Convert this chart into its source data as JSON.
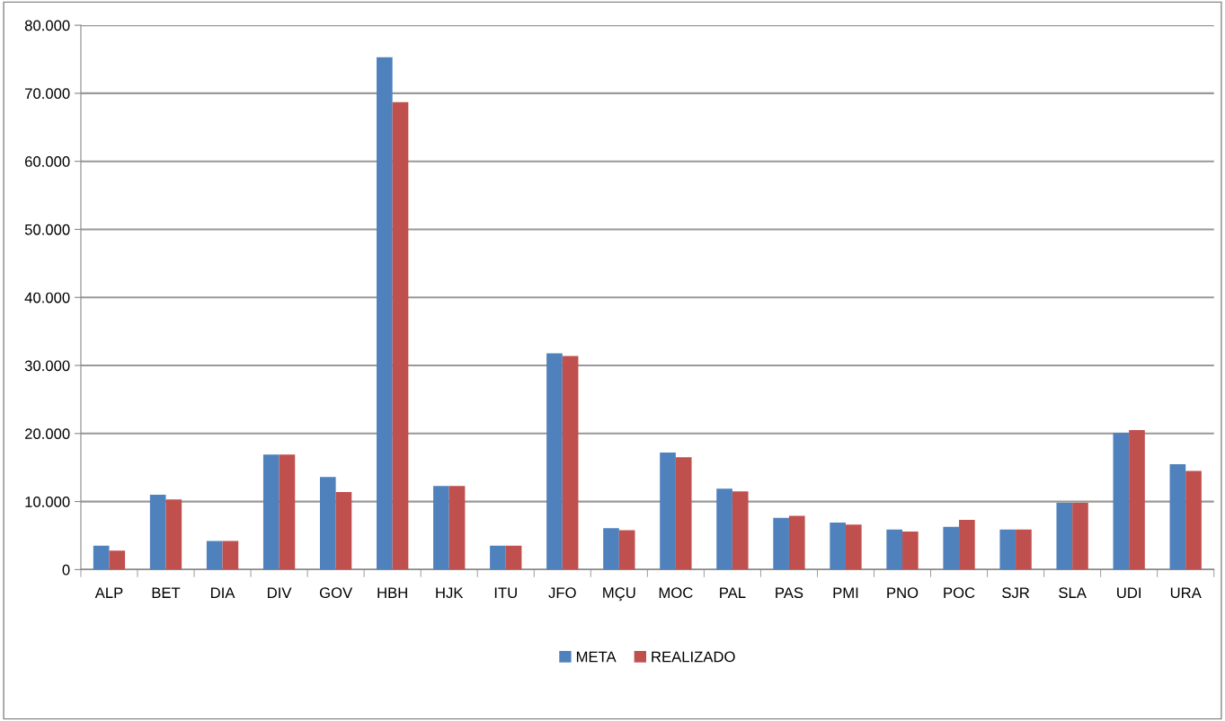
{
  "chart_data": {
    "type": "bar",
    "categories": [
      "ALP",
      "BET",
      "DIA",
      "DIV",
      "GOV",
      "HBH",
      "HJK",
      "ITU",
      "JFO",
      "MÇU",
      "MOC",
      "PAL",
      "PAS",
      "PMI",
      "PNO",
      "POC",
      "SJR",
      "SLA",
      "UDI",
      "URA"
    ],
    "series": [
      {
        "name": "META",
        "color": "#4f81bd",
        "values": [
          3500,
          11000,
          4200,
          16900,
          13600,
          75300,
          12300,
          3500,
          31800,
          6100,
          17200,
          11900,
          7600,
          6900,
          5900,
          6300,
          5900,
          9800,
          20100,
          15500
        ]
      },
      {
        "name": "REALIZADO",
        "color": "#c0504d",
        "values": [
          2800,
          10300,
          4200,
          16900,
          11400,
          68700,
          12300,
          3500,
          31400,
          5800,
          16500,
          11500,
          7900,
          6600,
          5600,
          7300,
          5900,
          9800,
          20500,
          14500
        ]
      }
    ],
    "ylim": [
      0,
      80000
    ],
    "yticks": [
      {
        "value": 0,
        "label": "0"
      },
      {
        "value": 10000,
        "label": "10.000"
      },
      {
        "value": 20000,
        "label": "20.000"
      },
      {
        "value": 30000,
        "label": "30.000"
      },
      {
        "value": 40000,
        "label": "40.000"
      },
      {
        "value": 50000,
        "label": "50.000"
      },
      {
        "value": 60000,
        "label": "60.000"
      },
      {
        "value": 70000,
        "label": "70.000"
      },
      {
        "value": 80000,
        "label": "80.000"
      }
    ],
    "grid": "y",
    "legend": "bottom"
  }
}
